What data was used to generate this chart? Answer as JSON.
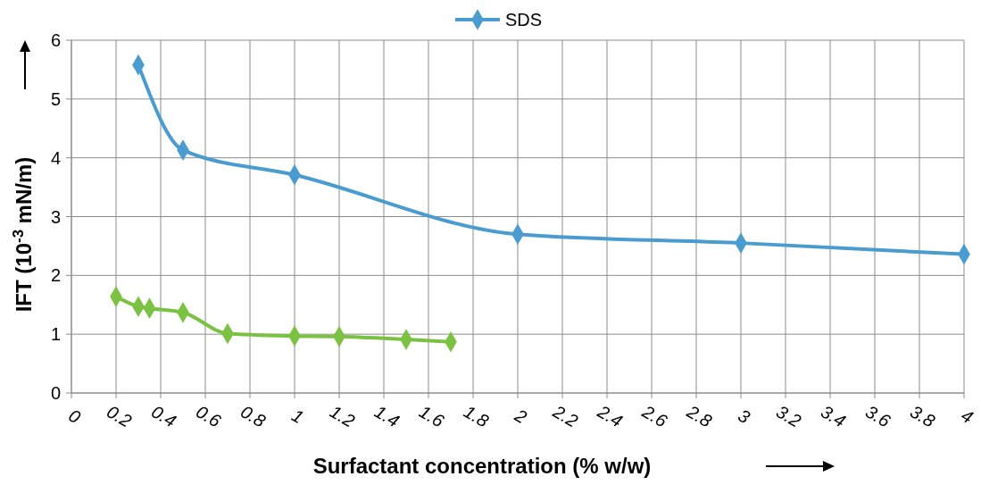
{
  "chart_data": {
    "type": "line",
    "xlabel": "Surfactant concentration (% w/w)",
    "ylabel": "IFT (10$^{-3}$ mN/m)",
    "xlim": [
      0,
      4
    ],
    "xticks": [
      0,
      0.2,
      0.4,
      0.6,
      0.8,
      1,
      1.2,
      1.4,
      1.6,
      1.8,
      2,
      2.2,
      2.4,
      2.6,
      2.8,
      3,
      3.2,
      3.4,
      3.6,
      3.8,
      4
    ],
    "ylim": [
      0,
      6
    ],
    "yticks": [
      0,
      1,
      2,
      3,
      4,
      5,
      6
    ],
    "grid": true,
    "legend": "top",
    "marker": "diamond",
    "line_style": "solid",
    "series": [
      {
        "name": "SDS",
        "color": "#4a9cd0",
        "x": [
          0.3,
          0.5,
          1,
          2,
          3,
          4
        ],
        "values": [
          5.58,
          4.13,
          3.71,
          2.7,
          2.55,
          2.36
        ]
      },
      {
        "color": "#7cc242",
        "x": [
          0.2,
          0.3,
          0.35,
          0.5,
          0.7,
          1,
          1.2,
          1.5,
          1.7
        ],
        "values": [
          1.64,
          1.47,
          1.44,
          1.37,
          1.01,
          0.97,
          0.96,
          0.91,
          0.87
        ]
      }
    ]
  }
}
